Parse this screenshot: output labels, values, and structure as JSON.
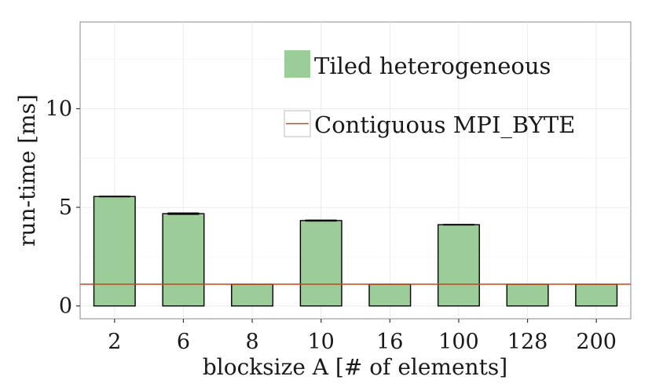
{
  "chart_data": {
    "type": "bar",
    "title": "",
    "xlabel": "blocksize A [# of elements]",
    "ylabel": "run-time [ms]",
    "categories": [
      "2",
      "6",
      "8",
      "10",
      "16",
      "100",
      "128",
      "200"
    ],
    "series": [
      {
        "name": "Tiled heterogeneous",
        "values": [
          5.55,
          4.68,
          1.1,
          4.33,
          1.1,
          4.12,
          1.1,
          1.1
        ],
        "error": [
          0.04,
          0.06,
          0.0,
          0.05,
          0.0,
          0.04,
          0.0,
          0.0
        ],
        "color": "#9ccc97"
      }
    ],
    "reference_line": {
      "name": "Contiguous MPI_BYTE",
      "value": 1.1,
      "color": "#c24a1e"
    },
    "ylim": [
      -0.65,
      14.4
    ],
    "yticks": [
      0,
      5,
      10
    ],
    "grid": true,
    "legend_position": "top-right"
  }
}
